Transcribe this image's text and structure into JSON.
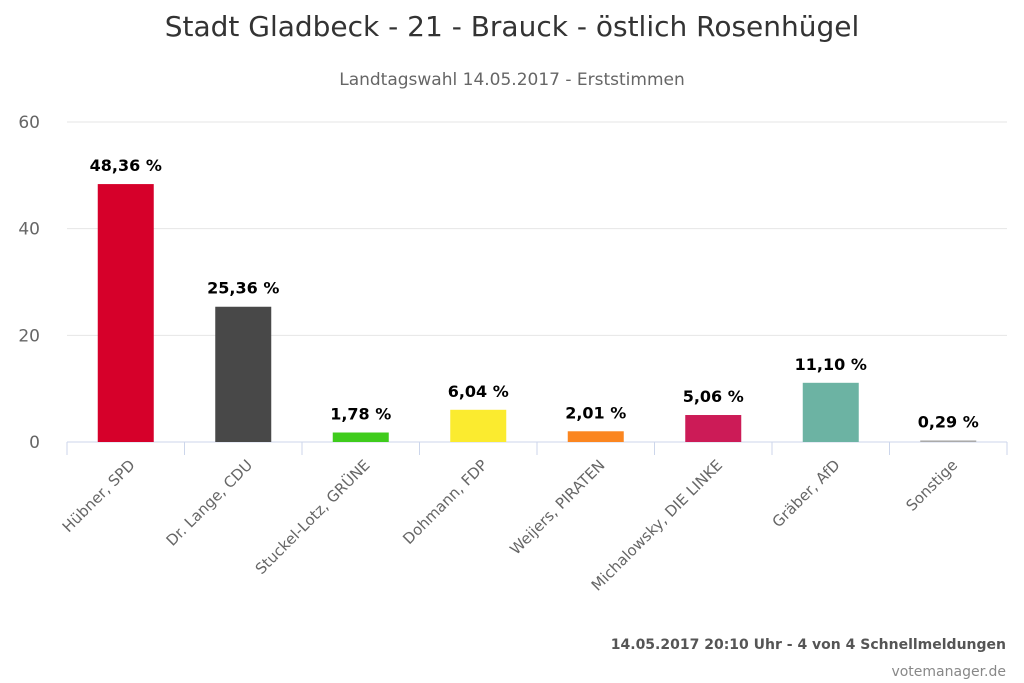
{
  "title": "Stadt Gladbeck - 21 - Brauck - östlich Rosenhügel",
  "subtitle": "Landtagswahl 14.05.2017 - Erststimmen",
  "footer": {
    "status": "14.05.2017 20:10 Uhr - 4 von 4 Schnellmeldungen",
    "source": "votemanager.de"
  },
  "chart_data": {
    "type": "bar",
    "categories": [
      "Hübner, SPD",
      "Dr. Lange, CDU",
      "Stuckel-Lotz, GRÜNE",
      "Dohmann, FDP",
      "Weijers, PIRATEN",
      "Michalowsky, DIE LINKE",
      "Gräber, AfD",
      "Sonstige"
    ],
    "values": [
      48.36,
      25.36,
      1.78,
      6.04,
      2.01,
      5.06,
      11.1,
      0.29
    ],
    "data_labels": [
      "48,36 %",
      "25,36 %",
      "1,78 %",
      "6,04 %",
      "2,01 %",
      "5,06 %",
      "11,10 %",
      "0,29 %"
    ],
    "colors": [
      "#d6002a",
      "#484848",
      "#3fcc1c",
      "#fbeb2f",
      "#fb8620",
      "#cc1b57",
      "#6cb3a3",
      "#aaaaaa"
    ],
    "yticks": [
      0,
      20,
      40,
      60
    ],
    "ylim": [
      0,
      60
    ],
    "grid": true,
    "legend": "none"
  }
}
